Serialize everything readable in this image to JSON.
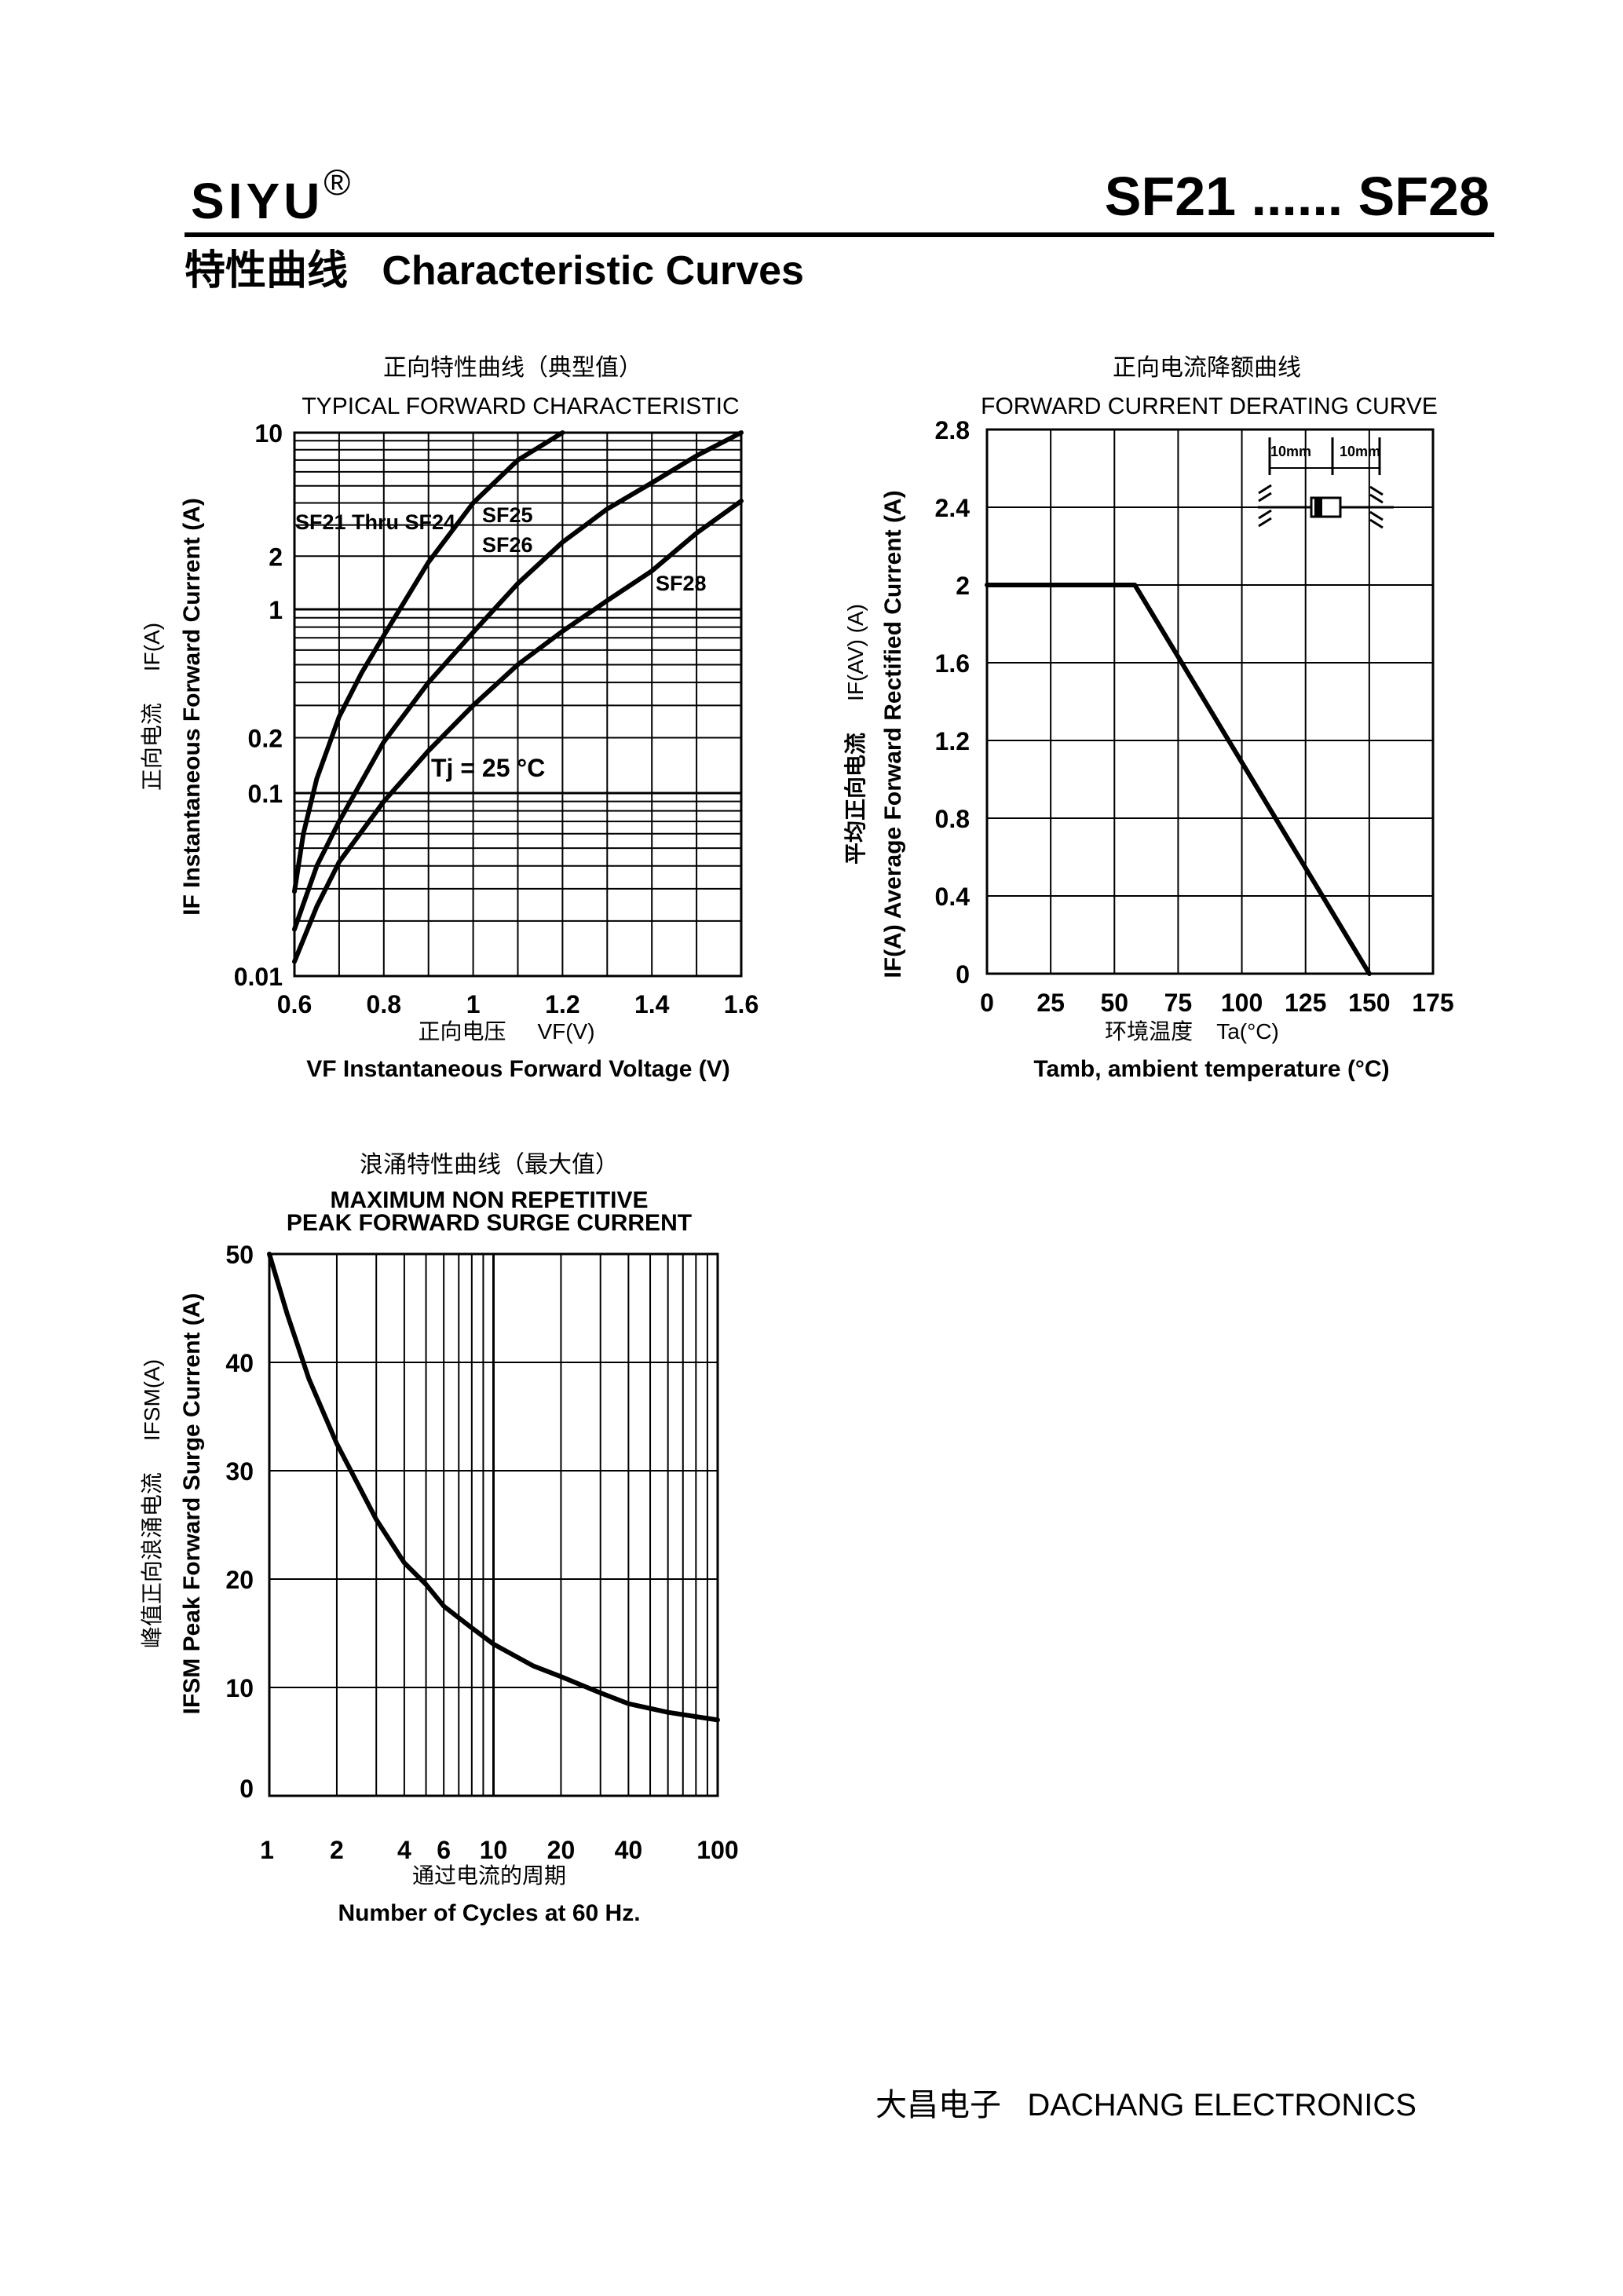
{
  "header": {
    "brand": "SIYU",
    "registered_mark": "®",
    "model_range": "SF21 ...... SF28",
    "section_title_cn": "特性曲线",
    "section_title_en": "Characteristic Curves"
  },
  "footer": {
    "company_cn": "大昌电子",
    "company_en": "DACHANG ELECTRONICS"
  },
  "chart_data": [
    {
      "id": "forward",
      "type": "line",
      "title_cn": "正向特性曲线（典型值）",
      "title": "TYPICAL FORWARD CHARACTERISTIC",
      "xlabel_cn": "正向电压",
      "xlabel_unit": "VF(V)",
      "xlabel": "VF Instantaneous Forward Voltage (V)",
      "ylabel_cn": "正向电流",
      "ylabel_unit": "IF(A)",
      "ylabel": "IF Instantaneous Forward Current (A)",
      "xlim": [
        0.6,
        1.6
      ],
      "ylim": [
        0.01,
        10
      ],
      "yscale": "log",
      "xticks": [
        "0.6",
        "0.8",
        "1",
        "1.2",
        "1.4",
        "1.6"
      ],
      "yticks": [
        "10",
        "2",
        "1",
        "0.2",
        "0.1",
        "0.01"
      ],
      "annotation": "Tj = 25 °C",
      "series": [
        {
          "name": "SF21 Thru SF24",
          "x": [
            0.6,
            0.62,
            0.65,
            0.7,
            0.75,
            0.8,
            0.9,
            1.0,
            1.1,
            1.2
          ],
          "y": [
            0.029,
            0.06,
            0.12,
            0.26,
            0.45,
            0.72,
            1.85,
            4.0,
            7.0,
            10.0
          ]
        },
        {
          "name": "SF25 SF26",
          "x": [
            0.6,
            0.65,
            0.7,
            0.8,
            0.9,
            1.0,
            1.1,
            1.2,
            1.3,
            1.4,
            1.5,
            1.6
          ],
          "y": [
            0.018,
            0.04,
            0.07,
            0.19,
            0.4,
            0.75,
            1.4,
            2.4,
            3.7,
            5.2,
            7.4,
            10.0
          ]
        },
        {
          "name": "SF28",
          "x": [
            0.6,
            0.65,
            0.7,
            0.8,
            0.9,
            1.0,
            1.1,
            1.2,
            1.3,
            1.4,
            1.5,
            1.6
          ],
          "y": [
            0.012,
            0.024,
            0.042,
            0.09,
            0.17,
            0.3,
            0.5,
            0.76,
            1.12,
            1.65,
            2.7,
            4.1
          ]
        }
      ]
    },
    {
      "id": "derating",
      "type": "line",
      "title_cn": "正向电流降额曲线",
      "title": "FORWARD CURRENT DERATING CURVE",
      "xlabel_cn": "环境温度",
      "xlabel_unit": "Ta(°C)",
      "xlabel": "Tamb, ambient temperature (°C)",
      "ylabel_cn": "平均正向电流",
      "ylabel_unit": "IF(AV) (A)",
      "ylabel": "IF(A) Average Forward Rectified Current (A)",
      "xlim": [
        0,
        175
      ],
      "ylim": [
        0,
        2.8
      ],
      "xticks": [
        "0",
        "25",
        "50",
        "75",
        "100",
        "125",
        "150",
        "175"
      ],
      "yticks": [
        "2.8",
        "2.4",
        "2",
        "1.6",
        "1.2",
        "0.8",
        "0.4",
        "0"
      ],
      "inset_dims": [
        "10mm",
        "10mm"
      ],
      "series": [
        {
          "x": [
            0,
            58,
            150
          ],
          "y": [
            2.0,
            2.0,
            0.0
          ]
        }
      ]
    },
    {
      "id": "surge",
      "type": "line",
      "title_cn": "浪涌特性曲线（最大值）",
      "title_line1": "MAXIMUM NON REPETITIVE",
      "title_line2": "PEAK FORWARD SURGE CURRENT",
      "xlabel_cn": "通过电流的周期",
      "xlabel": "Number  of  Cycles at 60 Hz.",
      "ylabel_cn": "峰值正向浪涌电流",
      "ylabel_unit": "IFSM(A)",
      "ylabel": "IFSM Peak Forward Surge Current (A)",
      "xlim": [
        1,
        100
      ],
      "xscale": "log",
      "ylim": [
        0,
        50
      ],
      "xticks": [
        "1",
        "2",
        "4",
        "6",
        "10",
        "20",
        "40",
        "100"
      ],
      "yticks": [
        "50",
        "40",
        "30",
        "20",
        "10",
        "0"
      ],
      "series": [
        {
          "x": [
            1,
            1.2,
            1.5,
            2,
            3,
            4,
            5,
            6,
            8,
            10,
            15,
            20,
            30,
            40,
            60,
            100
          ],
          "y": [
            50,
            44.5,
            38.5,
            32.5,
            25.5,
            21.5,
            19.5,
            17.5,
            15.5,
            14,
            12,
            11,
            9.5,
            8.5,
            7.7,
            7
          ]
        }
      ]
    }
  ]
}
